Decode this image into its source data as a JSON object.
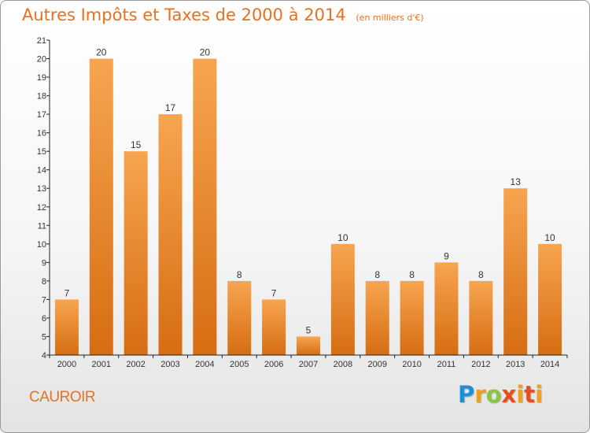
{
  "header": {
    "title": "Autres Impôts et Taxes de 2000 à 2014",
    "unit": "(en milliers d'€)"
  },
  "footer": {
    "commune": "CAUROIR",
    "logo": "Proxiti"
  },
  "colors": {
    "accent": "#e8701e",
    "bar_top": "#f7a550",
    "bar_bottom": "#d66d12",
    "logo": [
      "#1d8fd8",
      "#f0a018",
      "#8cc63f",
      "#e84e1b"
    ]
  },
  "chart_data": {
    "type": "bar",
    "title": "Autres Impôts et Taxes de 2000 à 2014",
    "subtitle": "(en milliers d'€)",
    "categories": [
      "2000",
      "2001",
      "2002",
      "2003",
      "2004",
      "2005",
      "2006",
      "2007",
      "2008",
      "2009",
      "2010",
      "2011",
      "2012",
      "2013",
      "2014"
    ],
    "values": [
      7,
      20,
      15,
      17,
      20,
      8,
      7,
      5,
      10,
      8,
      8,
      9,
      8,
      13,
      10
    ],
    "ylim": [
      4,
      21
    ],
    "yticks": [
      4,
      5,
      6,
      7,
      8,
      9,
      10,
      11,
      12,
      13,
      14,
      15,
      16,
      17,
      18,
      19,
      20,
      21
    ],
    "grid": false,
    "data_labels": true
  }
}
